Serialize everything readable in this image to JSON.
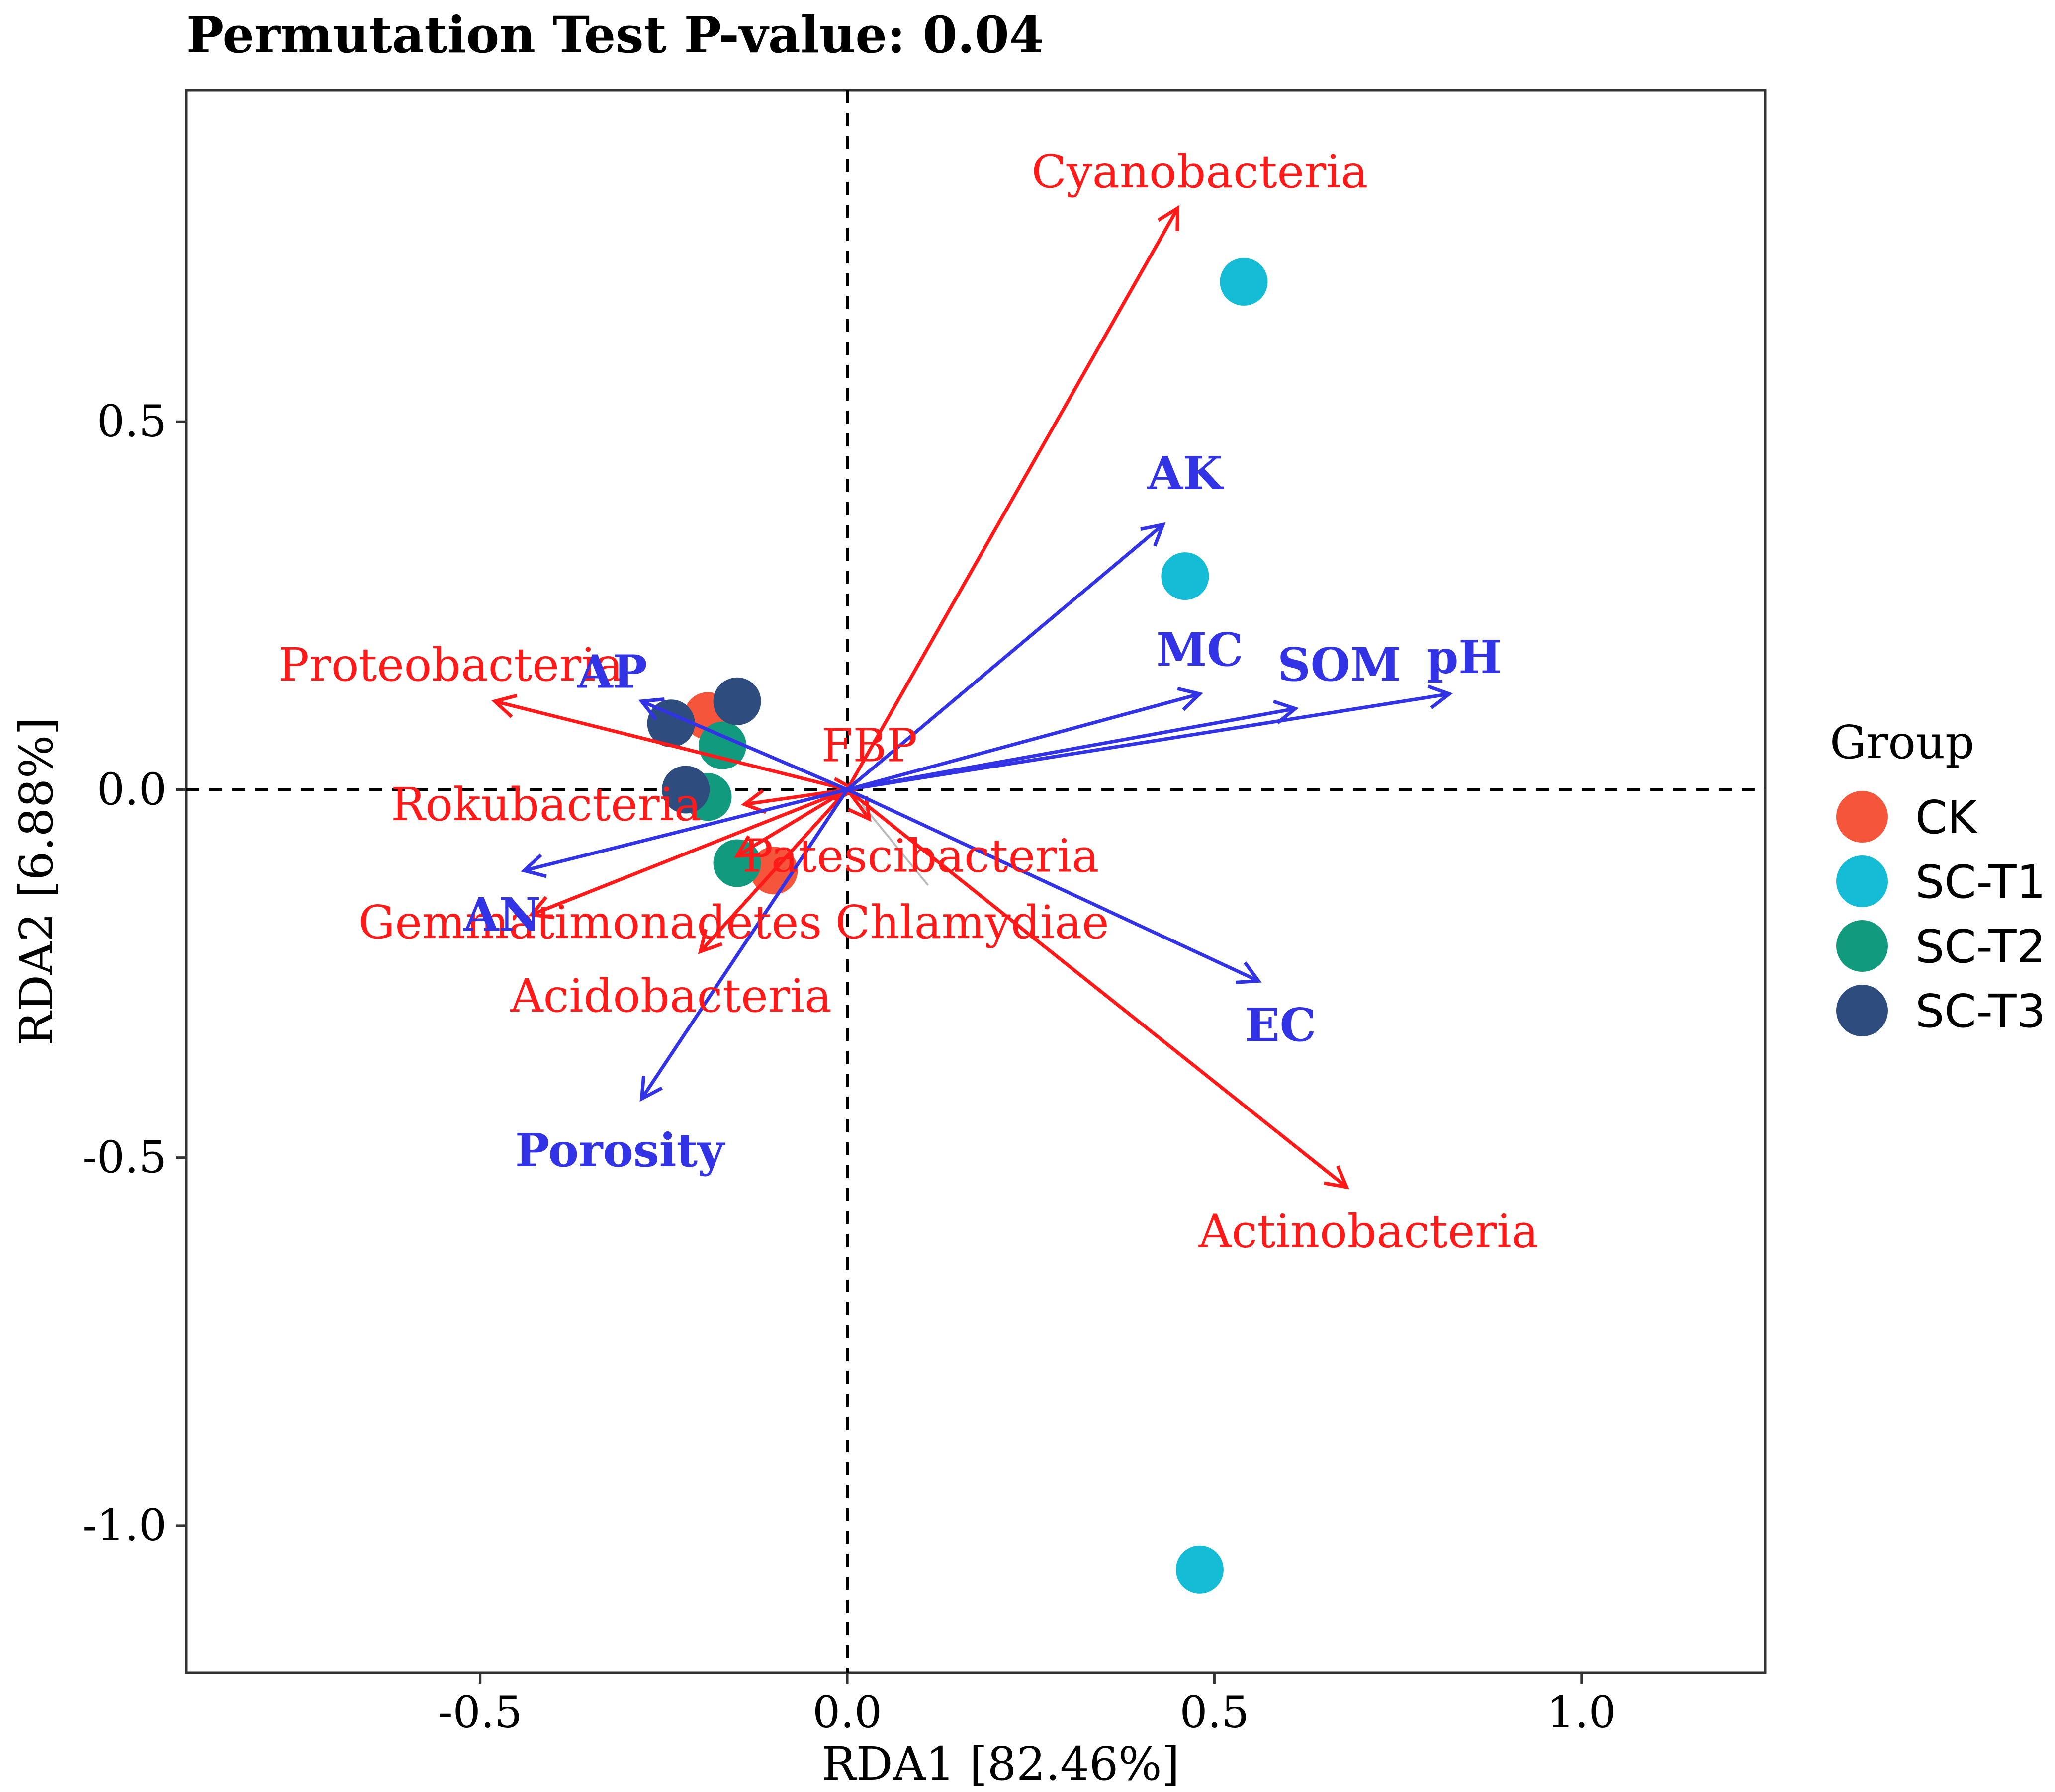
{
  "chart_data": {
    "type": "scatter",
    "subtype": "RDA biplot",
    "title": "Permutation Test P-value: 0.04",
    "xlabel": "RDA1 [82.46%]",
    "ylabel": "RDA2 [6.88%]",
    "xlim": [
      -0.9,
      1.25
    ],
    "ylim": [
      -1.2,
      0.95
    ],
    "xticks": [
      -0.5,
      0.0,
      0.5,
      1.0
    ],
    "xtick_labels": [
      "-0.5",
      "0.0",
      "0.5",
      "1.0"
    ],
    "yticks": [
      0.5,
      0.0,
      -0.5,
      -1.0
    ],
    "ytick_labels": [
      "0.5",
      "0.0",
      "-0.5",
      "-1.0"
    ],
    "grid": false,
    "reference_lines": {
      "x": 0,
      "y": 0,
      "style": "dashed"
    },
    "legend": {
      "title": "Group",
      "position": "right",
      "entries": [
        {
          "label": "CK",
          "color": "#f4553b"
        },
        {
          "label": "SC-T1",
          "color": "#14bcd6"
        },
        {
          "label": "SC-T2",
          "color": "#129a7f"
        },
        {
          "label": "SC-T3",
          "color": "#2e4d7e"
        }
      ]
    },
    "points": [
      {
        "group": "CK",
        "x": -0.19,
        "y": 0.1
      },
      {
        "group": "CK",
        "x": -0.1,
        "y": -0.11
      },
      {
        "group": "SC-T1",
        "x": 0.54,
        "y": 0.69
      },
      {
        "group": "SC-T1",
        "x": 0.46,
        "y": 0.29
      },
      {
        "group": "SC-T1",
        "x": 0.48,
        "y": -1.06
      },
      {
        "group": "SC-T2",
        "x": -0.17,
        "y": 0.06
      },
      {
        "group": "SC-T2",
        "x": -0.19,
        "y": -0.01
      },
      {
        "group": "SC-T2",
        "x": -0.15,
        "y": -0.1
      },
      {
        "group": "SC-T3",
        "x": -0.24,
        "y": 0.09
      },
      {
        "group": "SC-T3",
        "x": -0.15,
        "y": 0.12
      },
      {
        "group": "SC-T3",
        "x": -0.22,
        "y": 0.0
      }
    ],
    "species_vectors": {
      "color": "#ff1a1a",
      "items": [
        {
          "label": "Cyanobacteria",
          "x": 0.45,
          "y": 0.79
        },
        {
          "label": "Proteobacteria",
          "x": -0.48,
          "y": 0.12
        },
        {
          "label": "Rokubacteria",
          "x": -0.14,
          "y": -0.02
        },
        {
          "label": "FBP",
          "x": 0.01,
          "y": 0.0
        },
        {
          "label": "Patescibacteria",
          "x": -0.15,
          "y": -0.09
        },
        {
          "label": "Gemmatimonadetes",
          "x": -0.43,
          "y": -0.17
        },
        {
          "label": "Chlamydiae",
          "x": 0.03,
          "y": -0.04
        },
        {
          "label": "Acidobacteria",
          "x": -0.2,
          "y": -0.22
        },
        {
          "label": "Actinobacteria",
          "x": 0.68,
          "y": -0.54
        }
      ]
    },
    "environment_vectors": {
      "color": "#3333e6",
      "items": [
        {
          "label": "AK",
          "x": 0.43,
          "y": 0.36
        },
        {
          "label": "MC",
          "x": 0.48,
          "y": 0.13
        },
        {
          "label": "SOM",
          "x": 0.61,
          "y": 0.11
        },
        {
          "label": "pH",
          "x": 0.82,
          "y": 0.13
        },
        {
          "label": "AP",
          "x": -0.28,
          "y": 0.12
        },
        {
          "label": "AN",
          "x": -0.44,
          "y": -0.11
        },
        {
          "label": "EC",
          "x": 0.56,
          "y": -0.26
        },
        {
          "label": "Porosity",
          "x": -0.28,
          "y": -0.42
        }
      ]
    }
  }
}
